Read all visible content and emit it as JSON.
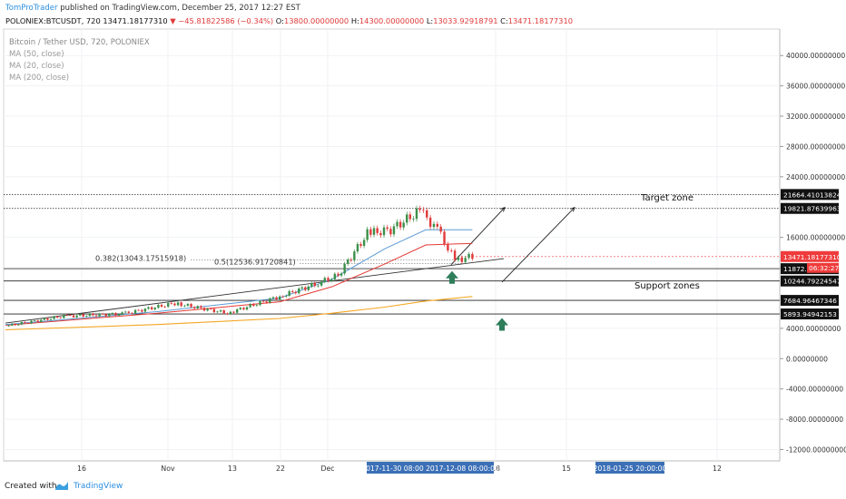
{
  "header": {
    "author": "TomProTrader",
    "published": "published on TradingView.com, December 25, 2017 12:27 EST",
    "symbol": "POLONIEX:BTCUSDT, 720",
    "last": "13471.18177310",
    "change": "−45.81822586 (−0.34%)",
    "open_label": "O:",
    "open": "13800.00000000",
    "high_label": "H:",
    "high": "14300.00000000",
    "low_label": "L:",
    "low": "13033.92918791",
    "close_label": "C:",
    "close": "13471.18177310"
  },
  "legend": {
    "title": "Bitcoin / Tether USD, 720, POLONIEX",
    "ma50": "MA (50, close)",
    "ma20": "MA (20, close)",
    "ma200": "MA (200, close)"
  },
  "footer": {
    "created": "Created with",
    "brand": "TradingView"
  },
  "colors": {
    "up": "#3c8f4a",
    "down": "#e03a3a",
    "ma20": "#e53935",
    "ma50": "#5b9bd5",
    "ma200": "#f5a623",
    "price_tag": "#ef3b3b",
    "arrow": "#2e7d5b",
    "time_highlight": "#3b6fb6"
  },
  "chart_data": {
    "type": "line",
    "y_axis_labels": [
      "40000.00000000",
      "36000.00000000",
      "32000.00000000",
      "28000.00000000",
      "24000.00000000",
      "16000.00000000",
      "12000.0",
      "4000.00000000",
      "0.00000000",
      "-4000.00000000",
      "-8000.00000000",
      "-12000.00000000"
    ],
    "y_axis_values": [
      40000,
      36000,
      32000,
      28000,
      24000,
      16000,
      12000,
      4000,
      0,
      -4000,
      -8000,
      -12000
    ],
    "ylim": [
      -13500,
      43500
    ],
    "x_axis_labels": [
      "16",
      "Nov",
      "13",
      "22",
      "Dec",
      "18",
      "15",
      "12"
    ],
    "x_axis_highlights": [
      "2017-11-30 08:00",
      "2017-12-08 08:00:00",
      "2018-01-25 20:00:00"
    ],
    "price_levels": [
      {
        "label": "21664.41013824",
        "value": 21664.41
      },
      {
        "label": "19821.87639963",
        "value": 19821.88
      },
      {
        "label": "11872.40206812",
        "value": 11872.4
      },
      {
        "label": "10244.79224547",
        "value": 10244.79
      },
      {
        "label": "7684.96467346",
        "value": 7684.96
      },
      {
        "label": "5893.94942153",
        "value": 5893.95
      }
    ],
    "current_price": {
      "label": "13471.18177310",
      "value": 13471.18
    },
    "countdown": "06:32:27",
    "fib_labels": [
      {
        "label": "0.382(13043.17515918)",
        "value": 13043.18
      },
      {
        "label": "0.5(12536.91720841)",
        "value": 12536.92
      }
    ],
    "zone_labels": {
      "target": "Target zone",
      "support": "Support zones"
    },
    "price_series": {
      "dates": [
        "Oct 06",
        "Oct 16",
        "Oct 26",
        "Nov 04",
        "Nov 13",
        "Nov 22",
        "Nov 28",
        "Dec 02",
        "Dec 07",
        "Dec 11",
        "Dec 16",
        "Dec 19",
        "Dec 22",
        "Dec 25"
      ],
      "values": [
        4300,
        5600,
        5900,
        7300,
        6000,
        8200,
        9800,
        11000,
        16500,
        17000,
        19500,
        17000,
        13000,
        13471
      ]
    },
    "ma20_series": {
      "dates": [
        "Oct 06",
        "Nov 01",
        "Nov 22",
        "Dec 01",
        "Dec 10",
        "Dec 17",
        "Dec 25"
      ],
      "values": [
        4400,
        6000,
        7500,
        9500,
        12500,
        15000,
        15200
      ]
    },
    "ma50_series": {
      "dates": [
        "Oct 06",
        "Nov 01",
        "Nov 22",
        "Dec 01",
        "Dec 10",
        "Dec 17",
        "Dec 25"
      ],
      "values": [
        4500,
        6200,
        8000,
        10500,
        14500,
        17000,
        17000
      ]
    },
    "ma200_series": {
      "dates": [
        "Oct 06",
        "Nov 01",
        "Nov 22",
        "Dec 01",
        "Dec 10",
        "Dec 17",
        "Dec 25"
      ],
      "values": [
        3800,
        4500,
        5300,
        6000,
        6800,
        7600,
        8200
      ]
    }
  }
}
